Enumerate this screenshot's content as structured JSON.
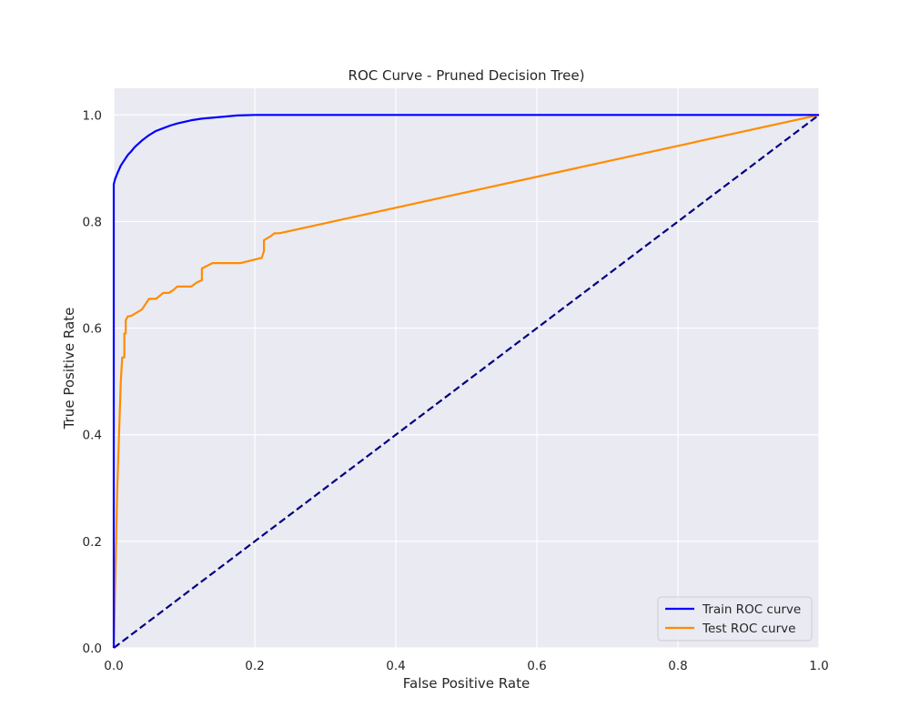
{
  "chart_data": {
    "type": "line",
    "title": "ROC Curve - Pruned Decision Tree)",
    "xlabel": "False Positive Rate",
    "ylabel": "True Positive Rate",
    "xlim": [
      0.0,
      1.0
    ],
    "ylim": [
      0.0,
      1.05
    ],
    "xticks": [
      0.0,
      0.2,
      0.4,
      0.6,
      0.8,
      1.0
    ],
    "xtick_labels": [
      "0.0",
      "0.2",
      "0.4",
      "0.6",
      "0.8",
      "1.0"
    ],
    "yticks": [
      0.0,
      0.2,
      0.4,
      0.6,
      0.8,
      1.0
    ],
    "ytick_labels": [
      "0.0",
      "0.2",
      "0.4",
      "0.6",
      "0.8",
      "1.0"
    ],
    "grid": true,
    "legend_position": "lower-right",
    "series": [
      {
        "name": "Train ROC curve",
        "color": "#0000ff",
        "style": "solid",
        "x": [
          0.0,
          0.0,
          0.001,
          0.002,
          0.005,
          0.01,
          0.015,
          0.02,
          0.025,
          0.03,
          0.04,
          0.05,
          0.06,
          0.07,
          0.08,
          0.09,
          0.1,
          0.11,
          0.125,
          0.15,
          0.175,
          0.2,
          0.3,
          0.5,
          0.7,
          0.9,
          1.0
        ],
        "y": [
          0.0,
          0.87,
          0.875,
          0.88,
          0.89,
          0.905,
          0.915,
          0.925,
          0.932,
          0.94,
          0.952,
          0.962,
          0.97,
          0.975,
          0.98,
          0.984,
          0.987,
          0.99,
          0.993,
          0.996,
          0.999,
          1.0,
          1.0,
          1.0,
          1.0,
          1.0,
          1.0
        ]
      },
      {
        "name": "Test ROC curve",
        "color": "#ff8c00",
        "style": "solid",
        "x": [
          0.0,
          0.005,
          0.01,
          0.012,
          0.015,
          0.015,
          0.017,
          0.017,
          0.02,
          0.025,
          0.04,
          0.05,
          0.06,
          0.07,
          0.078,
          0.085,
          0.09,
          0.11,
          0.118,
          0.125,
          0.125,
          0.14,
          0.15,
          0.18,
          0.21,
          0.213,
          0.213,
          0.222,
          0.228,
          0.235,
          1.0
        ],
        "y": [
          0.0,
          0.3,
          0.5,
          0.545,
          0.545,
          0.59,
          0.59,
          0.615,
          0.622,
          0.623,
          0.635,
          0.655,
          0.655,
          0.666,
          0.666,
          0.672,
          0.678,
          0.678,
          0.686,
          0.69,
          0.712,
          0.722,
          0.722,
          0.722,
          0.732,
          0.745,
          0.765,
          0.772,
          0.778,
          0.778,
          1.0
        ]
      },
      {
        "name": "",
        "color": "#000080",
        "style": "dashed",
        "x": [
          0.0,
          1.0
        ],
        "y": [
          0.0,
          1.0
        ]
      }
    ],
    "legend": [
      "Train ROC curve",
      "Test ROC curve"
    ]
  }
}
